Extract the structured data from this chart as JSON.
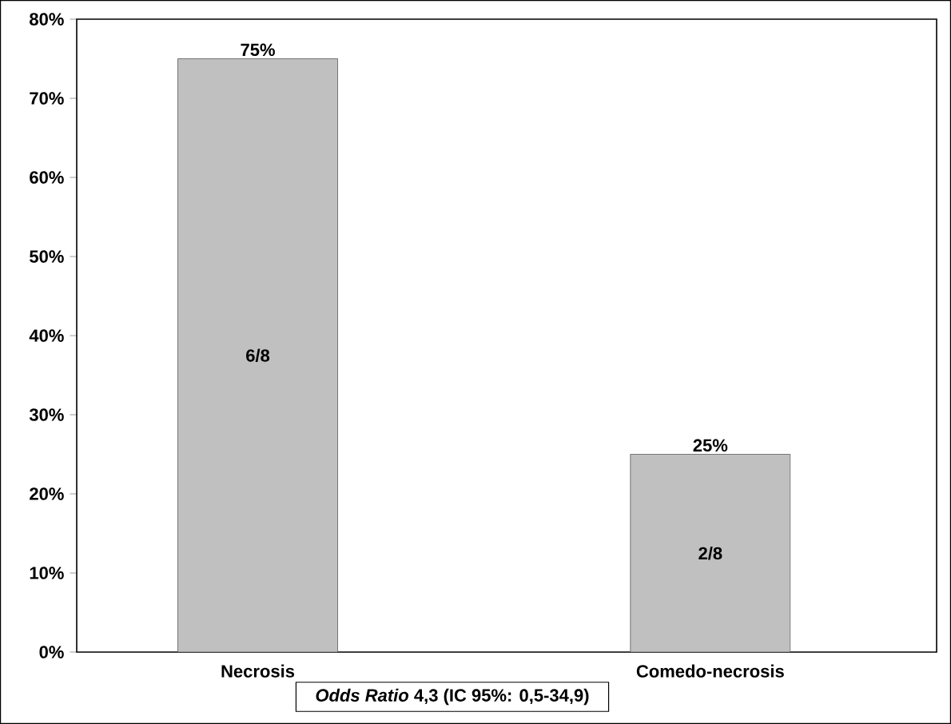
{
  "chart_data": {
    "type": "bar",
    "categories": [
      "Necrosis",
      "Comedo-necrosis"
    ],
    "values": [
      75,
      25
    ],
    "value_labels": [
      "75%",
      "25%"
    ],
    "color": "#c0c0c0",
    "ylim": [
      0,
      80
    ],
    "yticks": [
      {
        "value": 0,
        "label": "0%"
      },
      {
        "value": 10,
        "label": "10%"
      },
      {
        "value": 20,
        "label": "20%"
      },
      {
        "value": 30,
        "label": "30%"
      },
      {
        "value": 40,
        "label": "40%"
      },
      {
        "value": 50,
        "label": "50%"
      },
      {
        "value": 60,
        "label": "60%"
      },
      {
        "value": 70,
        "label": "70%"
      },
      {
        "value": 80,
        "label": "80%"
      }
    ],
    "grid": false,
    "annotations": [
      "6/8",
      "2/8",
      "*Odds Ratio* 4,3 (IC 95%: 0,5-34,9)"
    ]
  }
}
